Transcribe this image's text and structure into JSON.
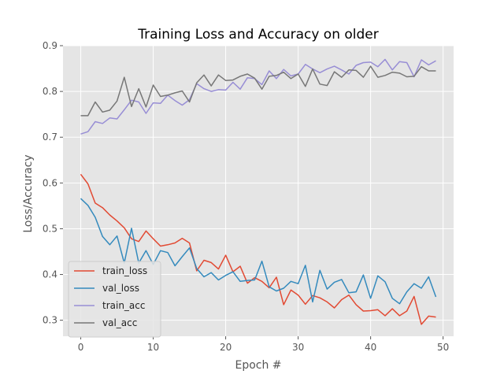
{
  "chart_data": {
    "type": "line",
    "title": "Training Loss and Accuracy on older",
    "xlabel": "Epoch #",
    "ylabel": "Loss/Accuracy",
    "xlim": [
      -2.45,
      51.45
    ],
    "ylim": [
      0.265,
      0.9
    ],
    "xticks": [
      0,
      10,
      20,
      30,
      40,
      50
    ],
    "yticks": [
      0.3,
      0.4,
      0.5,
      0.6,
      0.7,
      0.8,
      0.9
    ],
    "grid": true,
    "legend_position": "lower-left",
    "x": [
      0,
      1,
      2,
      3,
      4,
      5,
      6,
      7,
      8,
      9,
      10,
      11,
      12,
      13,
      14,
      15,
      16,
      17,
      18,
      19,
      20,
      21,
      22,
      23,
      24,
      25,
      26,
      27,
      28,
      29,
      30,
      31,
      32,
      33,
      34,
      35,
      36,
      37,
      38,
      39,
      40,
      41,
      42,
      43,
      44,
      45,
      46,
      47,
      48,
      49
    ],
    "series": [
      {
        "name": "train_loss",
        "color": "#e24a33",
        "values": [
          0.619,
          0.598,
          0.556,
          0.546,
          0.53,
          0.517,
          0.502,
          0.478,
          0.472,
          0.495,
          0.478,
          0.462,
          0.465,
          0.469,
          0.479,
          0.469,
          0.408,
          0.431,
          0.426,
          0.412,
          0.442,
          0.406,
          0.418,
          0.381,
          0.393,
          0.385,
          0.371,
          0.394,
          0.334,
          0.366,
          0.355,
          0.335,
          0.354,
          0.349,
          0.34,
          0.327,
          0.345,
          0.355,
          0.334,
          0.32,
          0.321,
          0.323,
          0.31,
          0.325,
          0.31,
          0.32,
          0.352,
          0.291,
          0.309,
          0.307
        ]
      },
      {
        "name": "val_loss",
        "color": "#348abd",
        "values": [
          0.566,
          0.551,
          0.525,
          0.483,
          0.465,
          0.484,
          0.425,
          0.501,
          0.425,
          0.452,
          0.422,
          0.452,
          0.448,
          0.419,
          0.439,
          0.458,
          0.413,
          0.395,
          0.404,
          0.388,
          0.398,
          0.406,
          0.385,
          0.387,
          0.388,
          0.429,
          0.373,
          0.364,
          0.37,
          0.385,
          0.38,
          0.42,
          0.34,
          0.409,
          0.368,
          0.383,
          0.389,
          0.36,
          0.362,
          0.399,
          0.348,
          0.397,
          0.384,
          0.348,
          0.336,
          0.362,
          0.38,
          0.37,
          0.395,
          0.351
        ]
      },
      {
        "name": "train_acc",
        "color": "#988ed5",
        "values": [
          0.707,
          0.712,
          0.734,
          0.73,
          0.742,
          0.74,
          0.76,
          0.781,
          0.777,
          0.752,
          0.775,
          0.774,
          0.792,
          0.78,
          0.77,
          0.782,
          0.817,
          0.806,
          0.8,
          0.804,
          0.803,
          0.82,
          0.805,
          0.83,
          0.828,
          0.815,
          0.845,
          0.828,
          0.848,
          0.834,
          0.838,
          0.859,
          0.849,
          0.841,
          0.849,
          0.855,
          0.847,
          0.838,
          0.857,
          0.863,
          0.864,
          0.854,
          0.87,
          0.847,
          0.865,
          0.863,
          0.832,
          0.869,
          0.858,
          0.867
        ]
      },
      {
        "name": "val_acc",
        "color": "#777777",
        "values": [
          0.747,
          0.747,
          0.777,
          0.755,
          0.759,
          0.779,
          0.831,
          0.767,
          0.806,
          0.766,
          0.814,
          0.789,
          0.792,
          0.797,
          0.801,
          0.777,
          0.819,
          0.836,
          0.812,
          0.836,
          0.824,
          0.825,
          0.833,
          0.838,
          0.829,
          0.805,
          0.833,
          0.835,
          0.842,
          0.828,
          0.838,
          0.811,
          0.849,
          0.816,
          0.813,
          0.843,
          0.831,
          0.847,
          0.846,
          0.831,
          0.855,
          0.831,
          0.835,
          0.842,
          0.84,
          0.832,
          0.833,
          0.854,
          0.845,
          0.845
        ]
      }
    ]
  }
}
